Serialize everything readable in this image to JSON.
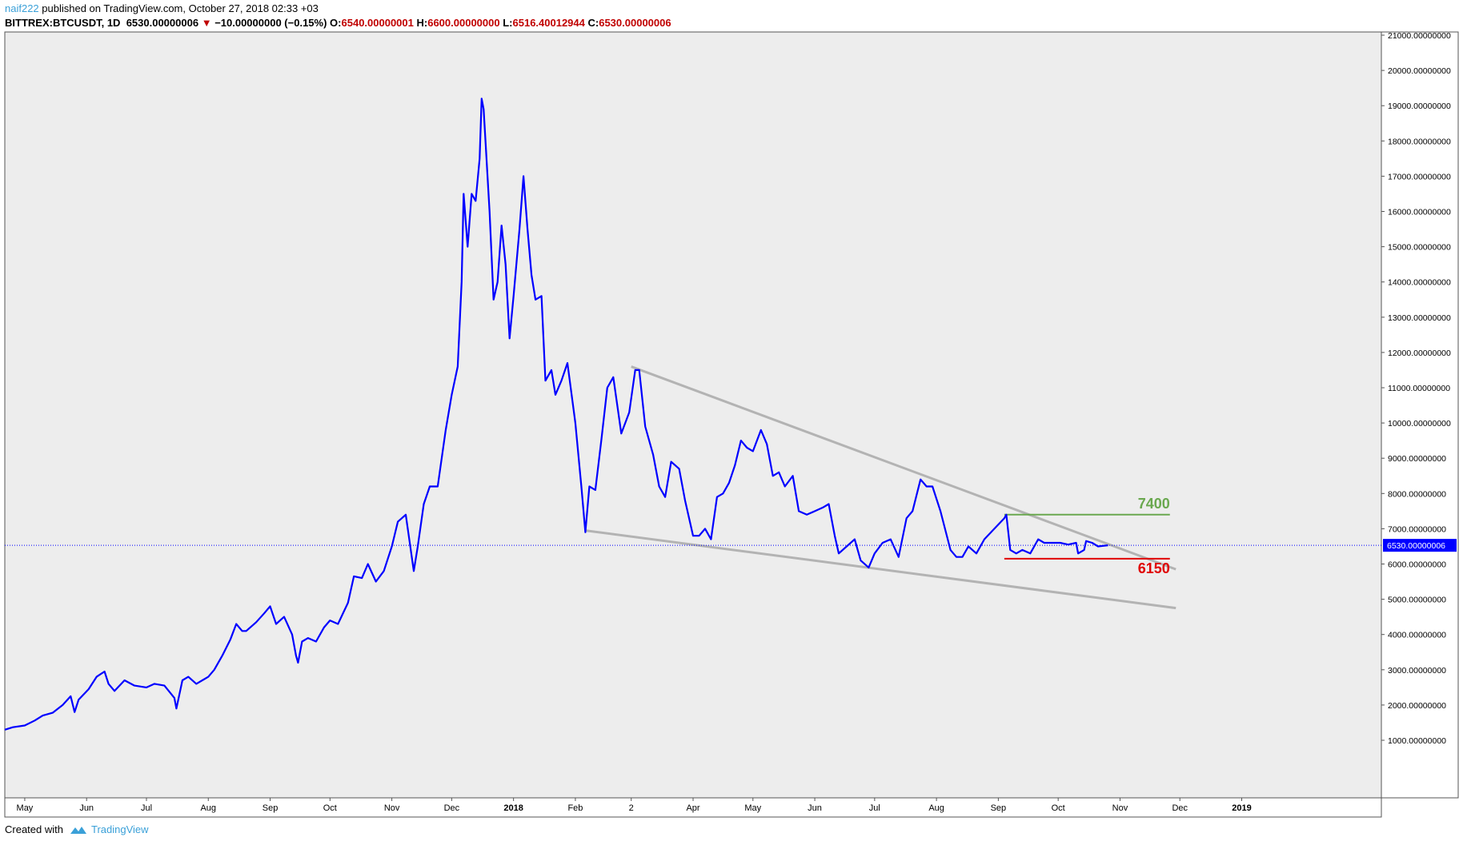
{
  "header": {
    "user": "naif222",
    "published": "published on TradingView.com, October 27, 2018 02:33 +03",
    "symbol": "BITTREX:BTCUSDT, 1D",
    "last": "6530.00000006",
    "change": "−10.00000000 (−0.15%)",
    "o_label": "O:",
    "o_value": "6540.00000001",
    "h_label": "H:",
    "h_value": "6600.00000000",
    "l_label": "L:",
    "l_value": "6516.40012944",
    "c_label": "C:",
    "c_value": "6530.00000006"
  },
  "footer": {
    "created_with": "Created with",
    "brand": "TradingView"
  },
  "colors": {
    "series": "#0000ff",
    "trend": "#b3b3b3",
    "resistance": "#6aa84f",
    "support": "#e00000",
    "plot_bg": "#ededed",
    "price_tag": "#0000ff"
  },
  "chart_data": {
    "type": "line",
    "title": "",
    "xlabel": "",
    "ylabel": "",
    "ylim": [
      1000,
      21000
    ],
    "xlim": [
      "2017-04-21",
      "2019-03-12"
    ],
    "y_ticks": [
      "1000.00000000",
      "2000.00000000",
      "3000.00000000",
      "4000.00000000",
      "5000.00000000",
      "6000.00000000",
      "7000.00000000",
      "8000.00000000",
      "9000.00000000",
      "10000.00000000",
      "11000.00000000",
      "12000.00000000",
      "13000.00000000",
      "14000.00000000",
      "15000.00000000",
      "16000.00000000",
      "17000.00000000",
      "18000.00000000",
      "19000.00000000",
      "20000.00000000",
      "21000.00000000"
    ],
    "x_ticks": [
      {
        "label": "May",
        "date": "2017-05-01",
        "bold": false
      },
      {
        "label": "Jun",
        "date": "2017-06-01",
        "bold": false
      },
      {
        "label": "Jul",
        "date": "2017-07-01",
        "bold": false
      },
      {
        "label": "Aug",
        "date": "2017-08-01",
        "bold": false
      },
      {
        "label": "Sep",
        "date": "2017-09-01",
        "bold": false
      },
      {
        "label": "Oct",
        "date": "2017-10-01",
        "bold": false
      },
      {
        "label": "Nov",
        "date": "2017-11-01",
        "bold": false
      },
      {
        "label": "Dec",
        "date": "2017-12-01",
        "bold": false
      },
      {
        "label": "2018",
        "date": "2018-01-01",
        "bold": true
      },
      {
        "label": "Feb",
        "date": "2018-02-01",
        "bold": false
      },
      {
        "label": "2",
        "date": "2018-03-01",
        "bold": false
      },
      {
        "label": "Apr",
        "date": "2018-04-01",
        "bold": false
      },
      {
        "label": "May",
        "date": "2018-05-01",
        "bold": false
      },
      {
        "label": "Jun",
        "date": "2018-06-01",
        "bold": false
      },
      {
        "label": "Jul",
        "date": "2018-07-01",
        "bold": false
      },
      {
        "label": "Aug",
        "date": "2018-08-01",
        "bold": false
      },
      {
        "label": "Sep",
        "date": "2018-09-01",
        "bold": false
      },
      {
        "label": "Oct",
        "date": "2018-10-01",
        "bold": false
      },
      {
        "label": "Nov",
        "date": "2018-11-01",
        "bold": false
      },
      {
        "label": "Dec",
        "date": "2018-12-01",
        "bold": false
      },
      {
        "label": "2019",
        "date": "2019-01-01",
        "bold": true
      }
    ],
    "series": [
      {
        "values": [
          [
            "2017-04-21",
            1300
          ],
          [
            "2017-04-25",
            1370
          ],
          [
            "2017-05-01",
            1420
          ],
          [
            "2017-05-06",
            1560
          ],
          [
            "2017-05-10",
            1700
          ],
          [
            "2017-05-15",
            1780
          ],
          [
            "2017-05-20",
            2000
          ],
          [
            "2017-05-24",
            2250
          ],
          [
            "2017-05-26",
            1800
          ],
          [
            "2017-05-28",
            2150
          ],
          [
            "2017-06-02",
            2450
          ],
          [
            "2017-06-06",
            2800
          ],
          [
            "2017-06-10",
            2950
          ],
          [
            "2017-06-12",
            2600
          ],
          [
            "2017-06-15",
            2400
          ],
          [
            "2017-06-20",
            2700
          ],
          [
            "2017-06-25",
            2550
          ],
          [
            "2017-07-01",
            2500
          ],
          [
            "2017-07-05",
            2600
          ],
          [
            "2017-07-10",
            2550
          ],
          [
            "2017-07-15",
            2200
          ],
          [
            "2017-07-16",
            1900
          ],
          [
            "2017-07-19",
            2700
          ],
          [
            "2017-07-22",
            2800
          ],
          [
            "2017-07-26",
            2600
          ],
          [
            "2017-08-01",
            2800
          ],
          [
            "2017-08-04",
            3000
          ],
          [
            "2017-08-08",
            3400
          ],
          [
            "2017-08-12",
            3850
          ],
          [
            "2017-08-15",
            4300
          ],
          [
            "2017-08-18",
            4100
          ],
          [
            "2017-08-20",
            4100
          ],
          [
            "2017-08-25",
            4350
          ],
          [
            "2017-08-29",
            4600
          ],
          [
            "2017-09-01",
            4800
          ],
          [
            "2017-09-04",
            4300
          ],
          [
            "2017-09-08",
            4500
          ],
          [
            "2017-09-12",
            4000
          ],
          [
            "2017-09-14",
            3400
          ],
          [
            "2017-09-15",
            3200
          ],
          [
            "2017-09-17",
            3800
          ],
          [
            "2017-09-20",
            3900
          ],
          [
            "2017-09-24",
            3800
          ],
          [
            "2017-09-28",
            4200
          ],
          [
            "2017-10-01",
            4400
          ],
          [
            "2017-10-05",
            4300
          ],
          [
            "2017-10-10",
            4900
          ],
          [
            "2017-10-13",
            5650
          ],
          [
            "2017-10-17",
            5600
          ],
          [
            "2017-10-20",
            6000
          ],
          [
            "2017-10-24",
            5500
          ],
          [
            "2017-10-28",
            5800
          ],
          [
            "2017-11-01",
            6500
          ],
          [
            "2017-11-04",
            7200
          ],
          [
            "2017-11-06",
            7300
          ],
          [
            "2017-11-08",
            7400
          ],
          [
            "2017-11-10",
            6600
          ],
          [
            "2017-11-12",
            5800
          ],
          [
            "2017-11-14",
            6500
          ],
          [
            "2017-11-17",
            7700
          ],
          [
            "2017-11-20",
            8200
          ],
          [
            "2017-11-24",
            8200
          ],
          [
            "2017-11-28",
            9800
          ],
          [
            "2017-12-01",
            10800
          ],
          [
            "2017-12-04",
            11600
          ],
          [
            "2017-12-06",
            14000
          ],
          [
            "2017-12-07",
            16500
          ],
          [
            "2017-12-09",
            15000
          ],
          [
            "2017-12-11",
            16500
          ],
          [
            "2017-12-13",
            16300
          ],
          [
            "2017-12-15",
            17500
          ],
          [
            "2017-12-16",
            19200
          ],
          [
            "2017-12-17",
            18900
          ],
          [
            "2017-12-20",
            16000
          ],
          [
            "2017-12-22",
            13500
          ],
          [
            "2017-12-24",
            14000
          ],
          [
            "2017-12-26",
            15600
          ],
          [
            "2017-12-28",
            14500
          ],
          [
            "2017-12-30",
            12400
          ],
          [
            "2018-01-01",
            13600
          ],
          [
            "2018-01-04",
            15500
          ],
          [
            "2018-01-06",
            17000
          ],
          [
            "2018-01-08",
            15500
          ],
          [
            "2018-01-10",
            14200
          ],
          [
            "2018-01-12",
            13500
          ],
          [
            "2018-01-15",
            13600
          ],
          [
            "2018-01-17",
            11200
          ],
          [
            "2018-01-20",
            11500
          ],
          [
            "2018-01-22",
            10800
          ],
          [
            "2018-01-25",
            11200
          ],
          [
            "2018-01-28",
            11700
          ],
          [
            "2018-02-01",
            10000
          ],
          [
            "2018-02-04",
            8200
          ],
          [
            "2018-02-06",
            6900
          ],
          [
            "2018-02-08",
            8200
          ],
          [
            "2018-02-11",
            8100
          ],
          [
            "2018-02-14",
            9500
          ],
          [
            "2018-02-17",
            11000
          ],
          [
            "2018-02-20",
            11300
          ],
          [
            "2018-02-24",
            9700
          ],
          [
            "2018-02-28",
            10300
          ],
          [
            "2018-03-03",
            11500
          ],
          [
            "2018-03-05",
            11500
          ],
          [
            "2018-03-08",
            9900
          ],
          [
            "2018-03-12",
            9100
          ],
          [
            "2018-03-15",
            8200
          ],
          [
            "2018-03-18",
            7900
          ],
          [
            "2018-03-21",
            8900
          ],
          [
            "2018-03-25",
            8700
          ],
          [
            "2018-03-28",
            7800
          ],
          [
            "2018-04-01",
            6800
          ],
          [
            "2018-04-04",
            6800
          ],
          [
            "2018-04-07",
            7000
          ],
          [
            "2018-04-10",
            6700
          ],
          [
            "2018-04-13",
            7900
          ],
          [
            "2018-04-16",
            8000
          ],
          [
            "2018-04-19",
            8300
          ],
          [
            "2018-04-22",
            8800
          ],
          [
            "2018-04-25",
            9500
          ],
          [
            "2018-04-28",
            9300
          ],
          [
            "2018-05-01",
            9200
          ],
          [
            "2018-05-05",
            9800
          ],
          [
            "2018-05-08",
            9400
          ],
          [
            "2018-05-11",
            8500
          ],
          [
            "2018-05-14",
            8600
          ],
          [
            "2018-05-17",
            8200
          ],
          [
            "2018-05-21",
            8500
          ],
          [
            "2018-05-24",
            7500
          ],
          [
            "2018-05-28",
            7400
          ],
          [
            "2018-06-01",
            7500
          ],
          [
            "2018-06-05",
            7600
          ],
          [
            "2018-06-08",
            7700
          ],
          [
            "2018-06-11",
            6800
          ],
          [
            "2018-06-13",
            6300
          ],
          [
            "2018-06-17",
            6500
          ],
          [
            "2018-06-21",
            6700
          ],
          [
            "2018-06-24",
            6100
          ],
          [
            "2018-06-28",
            5900
          ],
          [
            "2018-07-01",
            6300
          ],
          [
            "2018-07-05",
            6600
          ],
          [
            "2018-07-09",
            6700
          ],
          [
            "2018-07-13",
            6200
          ],
          [
            "2018-07-17",
            7300
          ],
          [
            "2018-07-20",
            7500
          ],
          [
            "2018-07-24",
            8400
          ],
          [
            "2018-07-27",
            8200
          ],
          [
            "2018-07-30",
            8200
          ],
          [
            "2018-08-03",
            7500
          ],
          [
            "2018-08-08",
            6400
          ],
          [
            "2018-08-11",
            6200
          ],
          [
            "2018-08-14",
            6200
          ],
          [
            "2018-08-17",
            6500
          ],
          [
            "2018-08-21",
            6300
          ],
          [
            "2018-08-25",
            6700
          ],
          [
            "2018-08-30",
            7000
          ],
          [
            "2018-09-04",
            7300
          ],
          [
            "2018-09-05",
            7400
          ],
          [
            "2018-09-07",
            6400
          ],
          [
            "2018-09-10",
            6300
          ],
          [
            "2018-09-13",
            6400
          ],
          [
            "2018-09-17",
            6300
          ],
          [
            "2018-09-21",
            6700
          ],
          [
            "2018-09-24",
            6600
          ],
          [
            "2018-09-28",
            6600
          ],
          [
            "2018-10-02",
            6600
          ],
          [
            "2018-10-06",
            6550
          ],
          [
            "2018-10-10",
            6600
          ],
          [
            "2018-10-11",
            6300
          ],
          [
            "2018-10-14",
            6400
          ],
          [
            "2018-10-15",
            6650
          ],
          [
            "2018-10-18",
            6600
          ],
          [
            "2018-10-21",
            6500
          ],
          [
            "2018-10-24",
            6520
          ],
          [
            "2018-10-26",
            6530
          ]
        ]
      }
    ],
    "trendlines": [
      {
        "x1": "2018-03-01",
        "y1": 11600,
        "x2": "2018-11-29",
        "y2": 5850
      },
      {
        "x1": "2018-02-06",
        "y1": 6950,
        "x2": "2018-11-29",
        "y2": 4750
      }
    ],
    "levels": [
      {
        "label": "7400",
        "value": 7400,
        "x1": "2018-09-04",
        "x2": "2018-11-26",
        "color": "#6aa84f"
      },
      {
        "label": "6150",
        "value": 6150,
        "x1": "2018-09-04",
        "x2": "2018-11-26",
        "color": "#e00000"
      }
    ],
    "current_price": {
      "value": 6530,
      "label": "6530.00000006"
    }
  }
}
